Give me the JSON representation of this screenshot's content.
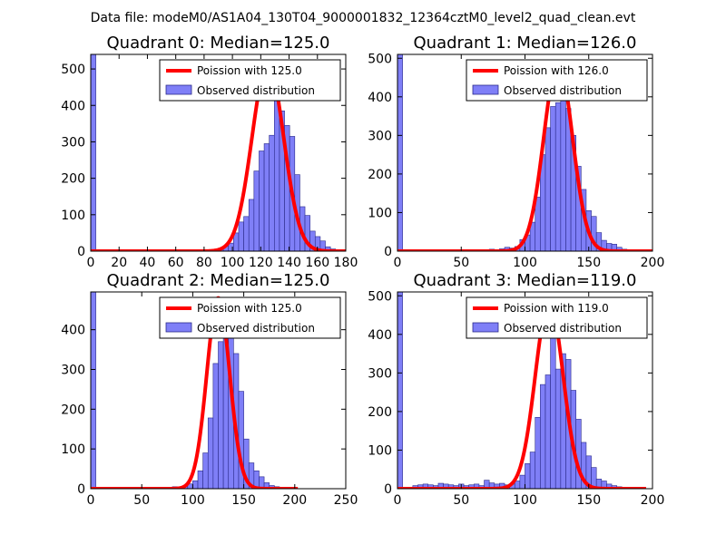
{
  "suptitle": "Data file: modeM0/AS1A04_130T04_9000001832_12364cztM0_level2_quad_clean.evt",
  "colors": {
    "bar_fill": "#7f7ff7",
    "bar_edge": "#2a2a8a",
    "line": "#ff0000"
  },
  "chart_data": [
    {
      "type": "bar",
      "title": "Quadrant 0: Median=125.0",
      "xlim": [
        0,
        180
      ],
      "ylim": [
        0,
        540
      ],
      "xticks": [
        0,
        20,
        40,
        60,
        80,
        100,
        120,
        140,
        160,
        180
      ],
      "yticks": [
        0,
        100,
        200,
        300,
        400,
        500
      ],
      "legend": {
        "line": "Poission with 125.0",
        "bars": "Observed distribution",
        "position": "upper-right"
      },
      "bin_width": 3.6,
      "bins": [
        [
          0,
          540
        ],
        [
          79.2,
          2
        ],
        [
          82.8,
          4
        ],
        [
          86.4,
          5
        ],
        [
          90,
          8
        ],
        [
          93.6,
          14
        ],
        [
          97.2,
          22
        ],
        [
          100.8,
          50
        ],
        [
          104.4,
          80
        ],
        [
          108,
          95
        ],
        [
          111.6,
          142
        ],
        [
          115.2,
          220
        ],
        [
          118.8,
          275
        ],
        [
          122.4,
          295
        ],
        [
          126,
          318
        ],
        [
          129.6,
          475
        ],
        [
          133.2,
          385
        ],
        [
          136.8,
          345
        ],
        [
          140.4,
          315
        ],
        [
          144,
          210
        ],
        [
          147.6,
          122
        ],
        [
          151.2,
          98
        ],
        [
          154.8,
          55
        ],
        [
          158.4,
          40
        ],
        [
          162,
          28
        ],
        [
          165.6,
          12
        ],
        [
          169.2,
          6
        ],
        [
          172.8,
          3
        ]
      ],
      "poisson_mean": 125.0,
      "poisson_peak": 515
    },
    {
      "type": "bar",
      "title": "Quadrant 1: Median=126.0",
      "xlim": [
        0,
        200
      ],
      "ylim": [
        0,
        510
      ],
      "xticks": [
        0,
        50,
        100,
        150,
        200
      ],
      "yticks": [
        0,
        100,
        200,
        300,
        400,
        500
      ],
      "legend": {
        "line": "Poission with 126.0",
        "bars": "Observed distribution",
        "position": "upper-right"
      },
      "bin_width": 4,
      "bins": [
        [
          0,
          510
        ],
        [
          68,
          3
        ],
        [
          72,
          5
        ],
        [
          76,
          4
        ],
        [
          80,
          6
        ],
        [
          84,
          10
        ],
        [
          88,
          8
        ],
        [
          92,
          12
        ],
        [
          96,
          30
        ],
        [
          100,
          42
        ],
        [
          104,
          75
        ],
        [
          108,
          140
        ],
        [
          112,
          250
        ],
        [
          116,
          320
        ],
        [
          120,
          375
        ],
        [
          124,
          385
        ],
        [
          128,
          460
        ],
        [
          132,
          370
        ],
        [
          136,
          300
        ],
        [
          140,
          220
        ],
        [
          144,
          160
        ],
        [
          148,
          105
        ],
        [
          152,
          90
        ],
        [
          156,
          48
        ],
        [
          160,
          28
        ],
        [
          164,
          20
        ],
        [
          168,
          18
        ],
        [
          172,
          10
        ],
        [
          176,
          5
        ]
      ],
      "poisson_mean": 126.0,
      "poisson_peak": 490
    },
    {
      "type": "bar",
      "title": "Quadrant 2: Median=125.0",
      "xlim": [
        0,
        250
      ],
      "ylim": [
        0,
        495
      ],
      "xticks": [
        0,
        50,
        100,
        150,
        200,
        250
      ],
      "yticks": [
        0,
        100,
        200,
        300,
        400
      ],
      "legend": {
        "line": "Poission with 125.0",
        "bars": "Observed distribution",
        "position": "upper-right"
      },
      "bin_width": 5,
      "bins": [
        [
          0,
          495
        ],
        [
          75,
          3
        ],
        [
          80,
          5
        ],
        [
          85,
          4
        ],
        [
          90,
          6
        ],
        [
          95,
          12
        ],
        [
          100,
          20
        ],
        [
          105,
          45
        ],
        [
          110,
          90
        ],
        [
          115,
          178
        ],
        [
          120,
          315
        ],
        [
          125,
          370
        ],
        [
          130,
          475
        ],
        [
          135,
          415
        ],
        [
          140,
          340
        ],
        [
          145,
          245
        ],
        [
          150,
          125
        ],
        [
          155,
          65
        ],
        [
          160,
          45
        ],
        [
          165,
          30
        ],
        [
          170,
          15
        ],
        [
          175,
          8
        ],
        [
          180,
          5
        ],
        [
          185,
          3
        ]
      ],
      "poisson_mean": 125.0,
      "poisson_peak": 480
    },
    {
      "type": "bar",
      "title": "Quadrant 3: Median=119.0",
      "xlim": [
        0,
        200
      ],
      "ylim": [
        0,
        510
      ],
      "xticks": [
        0,
        50,
        100,
        150,
        200
      ],
      "yticks": [
        0,
        100,
        200,
        300,
        400,
        500
      ],
      "legend": {
        "line": "Poission with 119.0",
        "bars": "Observed distribution",
        "position": "upper-right"
      },
      "bin_width": 4,
      "bins": [
        [
          0,
          510
        ],
        [
          12,
          8
        ],
        [
          16,
          10
        ],
        [
          20,
          12
        ],
        [
          24,
          10
        ],
        [
          28,
          8
        ],
        [
          32,
          14
        ],
        [
          36,
          12
        ],
        [
          40,
          10
        ],
        [
          44,
          8
        ],
        [
          48,
          12
        ],
        [
          52,
          8
        ],
        [
          56,
          10
        ],
        [
          60,
          12
        ],
        [
          64,
          8
        ],
        [
          68,
          22
        ],
        [
          72,
          15
        ],
        [
          76,
          12
        ],
        [
          80,
          14
        ],
        [
          84,
          10
        ],
        [
          88,
          12
        ],
        [
          92,
          20
        ],
        [
          96,
          35
        ],
        [
          100,
          65
        ],
        [
          104,
          95
        ],
        [
          108,
          185
        ],
        [
          112,
          270
        ],
        [
          116,
          295
        ],
        [
          120,
          395
        ],
        [
          124,
          310
        ],
        [
          128,
          350
        ],
        [
          132,
          335
        ],
        [
          136,
          255
        ],
        [
          140,
          180
        ],
        [
          144,
          120
        ],
        [
          148,
          85
        ],
        [
          152,
          55
        ],
        [
          156,
          25
        ],
        [
          160,
          20
        ],
        [
          164,
          12
        ],
        [
          168,
          8
        ],
        [
          172,
          5
        ]
      ],
      "poisson_mean": 119.0,
      "poisson_peak": 485
    }
  ]
}
